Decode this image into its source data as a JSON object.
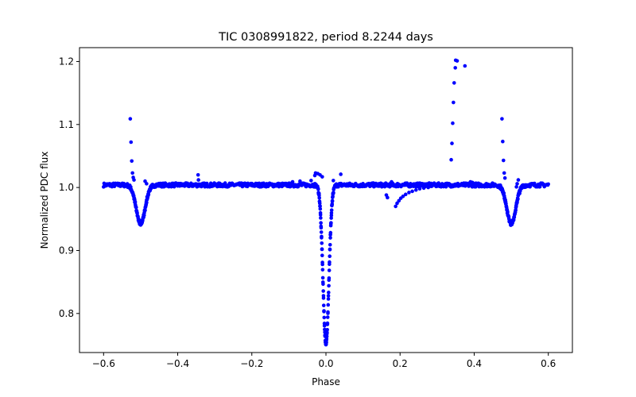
{
  "chart_data": {
    "type": "scatter",
    "title": "TIC 0308991822, period 8.2244 days",
    "xlabel": "Phase",
    "ylabel": "Normalized PDC flux",
    "xlim": [
      -0.665,
      0.665
    ],
    "ylim": [
      0.738,
      1.222
    ],
    "xticks": [
      -0.6,
      -0.4,
      -0.2,
      0.0,
      0.2,
      0.4,
      0.6
    ],
    "xtick_labels": [
      "−0.6",
      "−0.4",
      "−0.2",
      "0.0",
      "0.2",
      "0.4",
      "0.6"
    ],
    "yticks": [
      0.8,
      0.9,
      1.0,
      1.1,
      1.2
    ],
    "ytick_labels": [
      "0.8",
      "0.9",
      "1.0",
      "1.1",
      "1.2"
    ],
    "grid": false,
    "marker_color": "#0000ff",
    "baseline_flux": 1.004,
    "baseline_phase_range": [
      -0.6,
      0.6
    ],
    "dips": [
      {
        "phase": -0.5,
        "min_flux": 0.942,
        "half_width": 0.012
      },
      {
        "phase": 0.0,
        "min_flux": 0.752,
        "half_width": 0.008
      },
      {
        "phase": 0.5,
        "min_flux": 0.942,
        "half_width": 0.012
      }
    ],
    "points": [
      {
        "x": -0.528,
        "y": 1.109
      },
      {
        "x": -0.526,
        "y": 1.072
      },
      {
        "x": -0.524,
        "y": 1.042
      },
      {
        "x": -0.522,
        "y": 1.023
      },
      {
        "x": -0.52,
        "y": 1.016
      },
      {
        "x": -0.518,
        "y": 1.012
      },
      {
        "x": -0.345,
        "y": 1.02
      },
      {
        "x": -0.344,
        "y": 1.012
      },
      {
        "x": -0.04,
        "y": 1.011
      },
      {
        "x": -0.03,
        "y": 1.019
      },
      {
        "x": -0.028,
        "y": 1.023
      },
      {
        "x": -0.022,
        "y": 1.022
      },
      {
        "x": -0.016,
        "y": 1.02
      },
      {
        "x": -0.01,
        "y": 1.017
      },
      {
        "x": 0.02,
        "y": 1.011
      },
      {
        "x": 0.04,
        "y": 1.021
      },
      {
        "x": 0.163,
        "y": 0.988
      },
      {
        "x": 0.166,
        "y": 0.984
      },
      {
        "x": 0.177,
        "y": 1.009
      },
      {
        "x": 0.188,
        "y": 0.97
      },
      {
        "x": 0.192,
        "y": 0.975
      },
      {
        "x": 0.197,
        "y": 0.979
      },
      {
        "x": 0.202,
        "y": 0.983
      },
      {
        "x": 0.208,
        "y": 0.986
      },
      {
        "x": 0.215,
        "y": 0.989
      },
      {
        "x": 0.224,
        "y": 0.992
      },
      {
        "x": 0.233,
        "y": 0.994
      },
      {
        "x": 0.243,
        "y": 0.996
      },
      {
        "x": 0.253,
        "y": 0.998
      },
      {
        "x": 0.264,
        "y": 0.999
      },
      {
        "x": 0.276,
        "y": 1.0
      },
      {
        "x": 0.338,
        "y": 1.044
      },
      {
        "x": 0.34,
        "y": 1.07
      },
      {
        "x": 0.342,
        "y": 1.102
      },
      {
        "x": 0.344,
        "y": 1.135
      },
      {
        "x": 0.346,
        "y": 1.166
      },
      {
        "x": 0.349,
        "y": 1.19
      },
      {
        "x": 0.35,
        "y": 1.202
      },
      {
        "x": 0.354,
        "y": 1.201
      },
      {
        "x": 0.375,
        "y": 1.193
      },
      {
        "x": 0.475,
        "y": 1.109
      },
      {
        "x": 0.477,
        "y": 1.073
      },
      {
        "x": 0.479,
        "y": 1.043
      },
      {
        "x": 0.481,
        "y": 1.023
      },
      {
        "x": 0.483,
        "y": 1.015
      },
      {
        "x": 0.519,
        "y": 1.012
      },
      {
        "x": 0.516,
        "y": 1.006
      },
      {
        "x": 0.514,
        "y": 1.001
      },
      {
        "x": -0.488,
        "y": 1.01
      },
      {
        "x": -0.484,
        "y": 1.006
      },
      {
        "x": 0.39,
        "y": 1.009
      },
      {
        "x": 0.395,
        "y": 1.008
      },
      {
        "x": -0.07,
        "y": 1.01
      },
      {
        "x": -0.09,
        "y": 1.009
      }
    ]
  }
}
